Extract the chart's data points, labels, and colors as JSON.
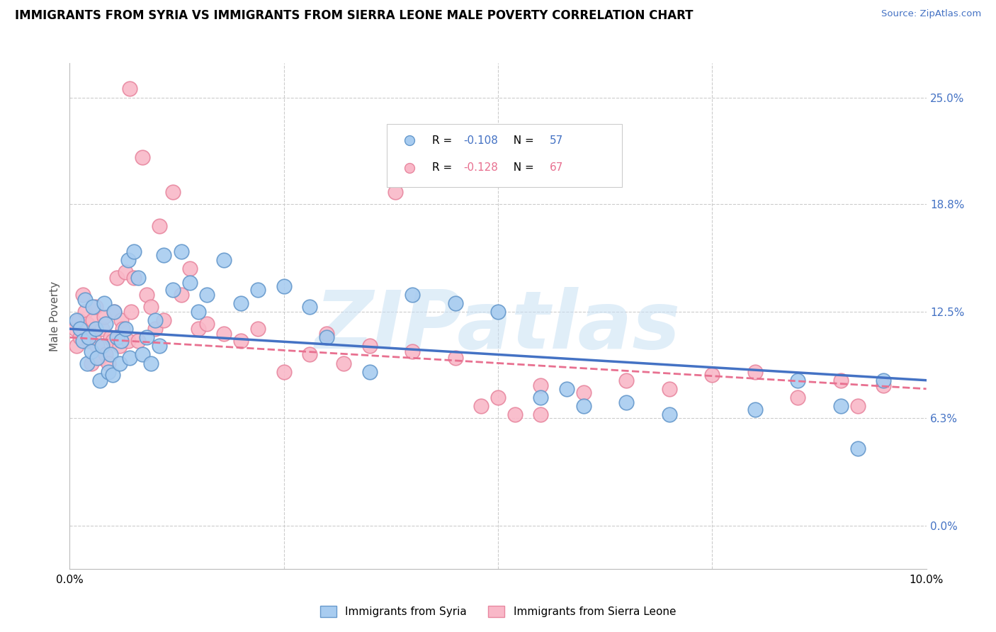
{
  "title": "IMMIGRANTS FROM SYRIA VS IMMIGRANTS FROM SIERRA LEONE MALE POVERTY CORRELATION CHART",
  "source": "Source: ZipAtlas.com",
  "ylabel": "Male Poverty",
  "ytick_labels": [
    "0.0%",
    "6.3%",
    "12.5%",
    "18.8%",
    "25.0%"
  ],
  "ytick_values": [
    0.0,
    6.3,
    12.5,
    18.8,
    25.0
  ],
  "xlim": [
    0.0,
    10.0
  ],
  "ylim": [
    -2.5,
    27.0
  ],
  "syria_color": "#A8CCF0",
  "sierra_leone_color": "#F9B8C8",
  "syria_edge_color": "#6699CC",
  "sierra_leone_edge_color": "#E888A0",
  "syria_R": -0.108,
  "sierra_leone_R": -0.128,
  "syria_N": 57,
  "sierra_leone_N": 67,
  "regression_syria_color": "#4472C4",
  "regression_sierra_leone_color": "#E87090",
  "watermark": "ZIPatlas",
  "watermark_color": "#C8E0F4",
  "grid_color": "#CCCCCC",
  "title_fontsize": 12,
  "tick_fontsize": 11,
  "source_color": "#4472C4",
  "syria_x": [
    0.08,
    0.12,
    0.15,
    0.18,
    0.2,
    0.22,
    0.25,
    0.27,
    0.3,
    0.32,
    0.35,
    0.38,
    0.4,
    0.42,
    0.45,
    0.48,
    0.5,
    0.52,
    0.55,
    0.58,
    0.6,
    0.65,
    0.68,
    0.7,
    0.75,
    0.8,
    0.85,
    0.9,
    0.95,
    1.0,
    1.05,
    1.1,
    1.2,
    1.3,
    1.4,
    1.5,
    1.6,
    1.8,
    2.0,
    2.2,
    2.5,
    2.8,
    3.0,
    3.5,
    4.0,
    4.5,
    5.0,
    5.5,
    5.8,
    6.0,
    6.5,
    7.0,
    8.0,
    8.5,
    9.0,
    9.2,
    9.5
  ],
  "syria_y": [
    12.0,
    11.5,
    10.8,
    13.2,
    9.5,
    11.0,
    10.2,
    12.8,
    11.5,
    9.8,
    8.5,
    10.5,
    13.0,
    11.8,
    9.0,
    10.0,
    8.8,
    12.5,
    11.0,
    9.5,
    10.8,
    11.5,
    15.5,
    9.8,
    16.0,
    14.5,
    10.0,
    11.0,
    9.5,
    12.0,
    10.5,
    15.8,
    13.8,
    16.0,
    14.2,
    12.5,
    13.5,
    15.5,
    13.0,
    13.8,
    14.0,
    12.8,
    11.0,
    9.0,
    13.5,
    13.0,
    12.5,
    7.5,
    8.0,
    7.0,
    7.2,
    6.5,
    6.8,
    8.5,
    7.0,
    4.5,
    8.5
  ],
  "sl_x": [
    0.06,
    0.08,
    0.1,
    0.12,
    0.15,
    0.18,
    0.2,
    0.22,
    0.25,
    0.27,
    0.28,
    0.3,
    0.32,
    0.35,
    0.38,
    0.4,
    0.42,
    0.45,
    0.48,
    0.5,
    0.52,
    0.55,
    0.58,
    0.6,
    0.62,
    0.65,
    0.68,
    0.7,
    0.72,
    0.75,
    0.8,
    0.85,
    0.9,
    0.95,
    1.0,
    1.05,
    1.1,
    1.2,
    1.3,
    1.4,
    1.5,
    1.6,
    1.8,
    2.0,
    2.2,
    2.5,
    2.8,
    3.0,
    3.2,
    3.5,
    4.0,
    4.5,
    5.0,
    5.5,
    6.0,
    6.5,
    7.0,
    7.5,
    8.0,
    8.5,
    9.0,
    9.2,
    9.5,
    5.2,
    4.8,
    3.8,
    5.5
  ],
  "sl_y": [
    11.5,
    10.5,
    12.0,
    11.0,
    13.5,
    12.5,
    11.8,
    10.8,
    9.5,
    12.0,
    11.0,
    12.8,
    10.5,
    9.8,
    11.5,
    12.2,
    10.0,
    9.5,
    11.0,
    10.8,
    12.5,
    14.5,
    10.5,
    12.0,
    11.5,
    14.8,
    10.8,
    25.5,
    12.5,
    14.5,
    10.8,
    21.5,
    13.5,
    12.8,
    11.5,
    17.5,
    12.0,
    19.5,
    13.5,
    15.0,
    11.5,
    11.8,
    11.2,
    10.8,
    11.5,
    9.0,
    10.0,
    11.2,
    9.5,
    10.5,
    10.2,
    9.8,
    7.5,
    8.2,
    7.8,
    8.5,
    8.0,
    8.8,
    9.0,
    7.5,
    8.5,
    7.0,
    8.2,
    6.5,
    7.0,
    19.5,
    6.5
  ]
}
